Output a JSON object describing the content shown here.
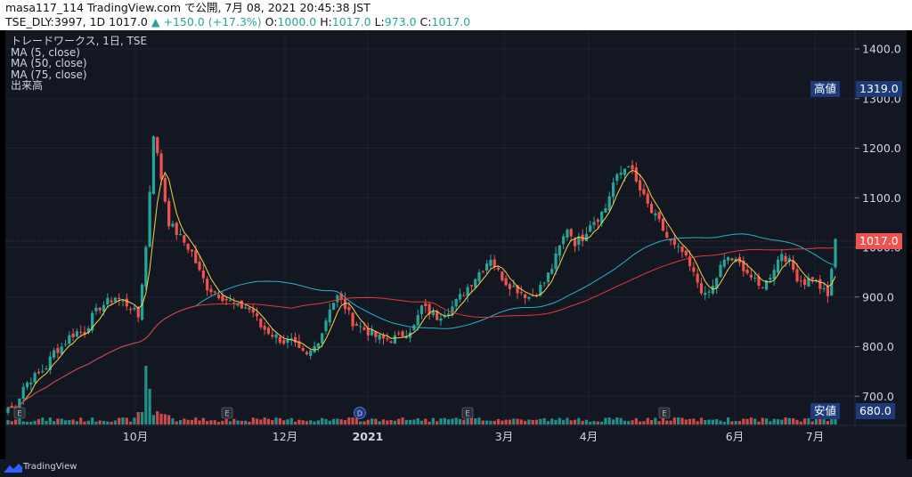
{
  "header": {
    "line1": "masa117_114 TradingView.com で公開, 7月 08, 2021 20:45:38 JST",
    "symbol": "TSE_DLY:3997, 1D 1017.0",
    "change": "+150.0 (+17.3%)",
    "o_label": "O:",
    "o_value": "1000.0",
    "h_label": "H:",
    "h_value": "1017.0",
    "l_label": "L:",
    "l_value": "973.0",
    "c_label": "C:",
    "c_value": "1017.0"
  },
  "legend": {
    "title": "トレードワークス, 1日, TSE",
    "ma5": "MA (5, close)",
    "ma50": "MA (50, close)",
    "ma75": "MA (75, close)",
    "volume": "出来高"
  },
  "tags": {
    "high_label": "高値",
    "high_value": "1319.0",
    "last_value": "1017.0",
    "low_label": "安値",
    "low_value": "680.0"
  },
  "footer": {
    "brand": "TradingView"
  },
  "colors": {
    "up": "#26a69a",
    "down": "#ef5350",
    "ma5": "#f5d547",
    "ma50": "#26b4c9",
    "ma75": "#e53935",
    "bg": "#131722"
  },
  "chart_data": {
    "type": "candlestick",
    "y_ticks": [
      "1400.0",
      "1300.0",
      "1200.0",
      "1100.0",
      "1000.0",
      "900.0",
      "800.0",
      "700.0"
    ],
    "x_ticks": [
      "10月",
      "12月",
      "2021",
      "3月",
      "4月",
      "6月",
      "7月"
    ],
    "ylim": [
      670,
      1430
    ],
    "anchors": [
      [
        2,
        680
      ],
      [
        4,
        720
      ],
      [
        6,
        735
      ],
      [
        8,
        745
      ],
      [
        10,
        760
      ],
      [
        12,
        790
      ],
      [
        14,
        800
      ],
      [
        16,
        820
      ],
      [
        18,
        830
      ],
      [
        20,
        830
      ],
      [
        22,
        860
      ],
      [
        24,
        880
      ],
      [
        26,
        890
      ],
      [
        28,
        900
      ],
      [
        30,
        890
      ],
      [
        32,
        880
      ],
      [
        34,
        860
      ],
      [
        36,
        1000
      ],
      [
        38,
        1230
      ],
      [
        40,
        1140
      ],
      [
        42,
        1050
      ],
      [
        44,
        1030
      ],
      [
        46,
        1010
      ],
      [
        48,
        990
      ],
      [
        50,
        950
      ],
      [
        52,
        920
      ],
      [
        54,
        910
      ],
      [
        56,
        900
      ],
      [
        58,
        890
      ],
      [
        60,
        880
      ],
      [
        62,
        880
      ],
      [
        64,
        870
      ],
      [
        66,
        840
      ],
      [
        68,
        830
      ],
      [
        70,
        820
      ],
      [
        72,
        810
      ],
      [
        74,
        810
      ],
      [
        76,
        790
      ],
      [
        78,
        780
      ],
      [
        80,
        800
      ],
      [
        82,
        830
      ],
      [
        84,
        880
      ],
      [
        86,
        900
      ],
      [
        88,
        880
      ],
      [
        90,
        850
      ],
      [
        92,
        840
      ],
      [
        94,
        830
      ],
      [
        96,
        820
      ],
      [
        98,
        815
      ],
      [
        100,
        815
      ],
      [
        102,
        820
      ],
      [
        104,
        830
      ],
      [
        106,
        840
      ],
      [
        108,
        880
      ],
      [
        110,
        870
      ],
      [
        112,
        860
      ],
      [
        114,
        870
      ],
      [
        116,
        880
      ],
      [
        118,
        900
      ],
      [
        120,
        920
      ],
      [
        122,
        940
      ],
      [
        124,
        960
      ],
      [
        126,
        980
      ],
      [
        128,
        950
      ],
      [
        130,
        930
      ],
      [
        132,
        920
      ],
      [
        134,
        910
      ],
      [
        136,
        900
      ],
      [
        138,
        910
      ],
      [
        140,
        930
      ],
      [
        142,
        960
      ],
      [
        144,
        1000
      ],
      [
        146,
        1040
      ],
      [
        148,
        1010
      ],
      [
        150,
        1020
      ],
      [
        152,
        1050
      ],
      [
        154,
        1060
      ],
      [
        156,
        1080
      ],
      [
        158,
        1130
      ],
      [
        160,
        1150
      ],
      [
        162,
        1170
      ],
      [
        164,
        1130
      ],
      [
        166,
        1100
      ],
      [
        168,
        1070
      ],
      [
        170,
        1050
      ],
      [
        172,
        1020
      ],
      [
        174,
        1000
      ],
      [
        176,
        990
      ],
      [
        178,
        960
      ],
      [
        180,
        930
      ],
      [
        182,
        900
      ],
      [
        184,
        920
      ],
      [
        186,
        960
      ],
      [
        188,
        980
      ],
      [
        190,
        970
      ],
      [
        192,
        960
      ],
      [
        194,
        940
      ],
      [
        196,
        920
      ],
      [
        198,
        930
      ],
      [
        200,
        960
      ],
      [
        202,
        990
      ],
      [
        204,
        970
      ],
      [
        206,
        940
      ],
      [
        208,
        930
      ],
      [
        210,
        940
      ],
      [
        212,
        920
      ],
      [
        214,
        900
      ],
      [
        216,
        1017
      ]
    ],
    "series_ma5": "MA (5, close)",
    "series_ma50": "MA (50, close)",
    "series_ma75": "MA (75, close)"
  }
}
